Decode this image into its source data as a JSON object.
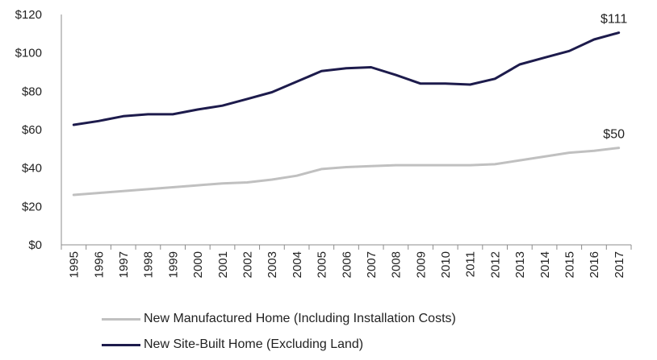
{
  "chart_data": {
    "type": "line",
    "title": "",
    "xlabel": "",
    "ylabel": "",
    "categories": [
      "1995",
      "1996",
      "1997",
      "1998",
      "1999",
      "2000",
      "2001",
      "2002",
      "2003",
      "2004",
      "2005",
      "2006",
      "2007",
      "2008",
      "2009",
      "2010",
      "2011",
      "2012",
      "2013",
      "2014",
      "2015",
      "2016",
      "2017"
    ],
    "ylim": [
      0,
      120
    ],
    "yticks": [
      0,
      20,
      40,
      60,
      80,
      100,
      120
    ],
    "ytick_labels": [
      "$0",
      "$20",
      "$40",
      "$60",
      "$80",
      "$100",
      "$120"
    ],
    "grid": false,
    "legend_position": "bottom",
    "series": [
      {
        "name": "New Manufactured Home (Including Installation Costs)",
        "color": "#c0c0c0",
        "values": [
          26,
          27,
          28,
          29,
          30,
          31,
          32,
          32.5,
          34,
          36,
          39.5,
          40.5,
          41,
          41.5,
          41.5,
          41.5,
          41.5,
          42,
          44,
          46,
          48,
          49,
          50.5
        ],
        "end_label": "$50"
      },
      {
        "name": "New Site-Built Home (Excluding Land)",
        "color": "#1d1b4c",
        "values": [
          62.5,
          64.5,
          67,
          68,
          68,
          70.5,
          72.5,
          76,
          79.5,
          85,
          90.5,
          92,
          92.5,
          88.5,
          84,
          84,
          83.5,
          86.5,
          94,
          97.5,
          101,
          107,
          110.5
        ],
        "end_label": "$111"
      }
    ]
  }
}
